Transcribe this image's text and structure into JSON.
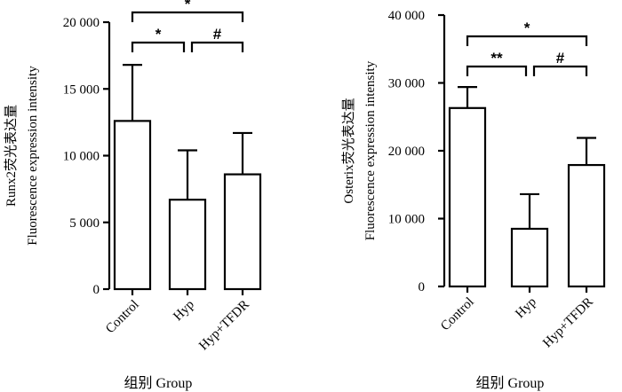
{
  "chart_data": [
    {
      "type": "bar",
      "categories": [
        "Control",
        "Hyp",
        "Hyp+TFDR"
      ],
      "values": [
        12600,
        6700,
        8600
      ],
      "errors": [
        4200,
        3700,
        3100
      ],
      "ylabel_line1": "Runx2荧光表达量",
      "ylabel_line2": "Fluorescence expression intensity",
      "xlabel": "组别  Group",
      "ylim": [
        0,
        20000
      ],
      "ticks": [
        0,
        5000,
        10000,
        15000,
        20000
      ],
      "tick_labels": [
        "0",
        "5 000",
        "10 000",
        "15 000",
        "20 000"
      ],
      "brackets": [
        {
          "from": 0,
          "to": 1,
          "label": "*"
        },
        {
          "from": 1,
          "to": 2,
          "label": "#"
        },
        {
          "from": 0,
          "to": 2,
          "label": "*"
        }
      ]
    },
    {
      "type": "bar",
      "categories": [
        "Control",
        "Hyp",
        "Hyp+TFDR"
      ],
      "values": [
        26300,
        8500,
        17900
      ],
      "errors": [
        3100,
        5100,
        4000
      ],
      "ylabel_line1": "Osterix荧光表达量",
      "ylabel_line2": "Fluorescence expression intensity",
      "xlabel": "组别  Group",
      "ylim": [
        0,
        40000
      ],
      "ticks": [
        0,
        10000,
        20000,
        30000,
        40000
      ],
      "tick_labels": [
        "0",
        "10 000",
        "20 000",
        "30 000",
        "40 000"
      ],
      "brackets": [
        {
          "from": 0,
          "to": 1,
          "label": "**"
        },
        {
          "from": 1,
          "to": 2,
          "label": "#"
        },
        {
          "from": 0,
          "to": 2,
          "label": "*"
        }
      ]
    }
  ]
}
